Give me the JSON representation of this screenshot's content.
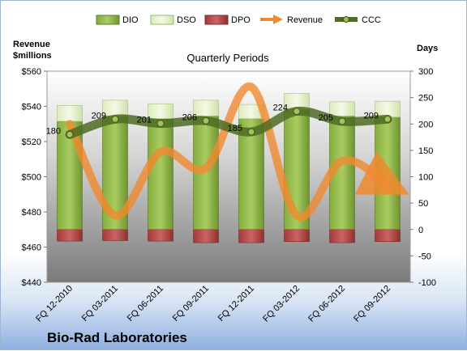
{
  "chart_data": {
    "type": "bar",
    "title": "Bio-Rad Laboratories",
    "subtitle": "Quarterly Periods",
    "left_axis_label_line1": "Revenue",
    "left_axis_label_line2": "$millions",
    "right_axis_label": "Days",
    "categories": [
      "FQ 12-2010",
      "FQ 03-2011",
      "FQ 06-2011",
      "FQ 09-2011",
      "FQ 12-2011",
      "FQ 03-2012",
      "FQ 06-2012",
      "FQ 09-2012"
    ],
    "left_ylim": [
      440,
      560
    ],
    "left_ticks": [
      "$440",
      "$460",
      "$480",
      "$500",
      "$520",
      "$540",
      "$560"
    ],
    "right_ylim": [
      -100,
      300
    ],
    "right_ticks": [
      "-100",
      "-50",
      "0",
      "50",
      "100",
      "150",
      "200",
      "250",
      "300"
    ],
    "series": [
      {
        "name": "DIO",
        "axis": "right",
        "color": "#7a9c3a",
        "values": [
          205,
          215,
          210,
          215,
          210,
          228,
          215,
          213
        ]
      },
      {
        "name": "DSO",
        "axis": "right",
        "color": "#e3f0c8",
        "values": [
          30,
          30,
          28,
          30,
          27,
          30,
          27,
          30
        ]
      },
      {
        "name": "DPO",
        "axis": "right",
        "color": "#b84a4a",
        "values": [
          -22,
          -21,
          -22,
          -25,
          -25,
          -23,
          -25,
          -23
        ]
      },
      {
        "name": "Revenue",
        "axis": "left",
        "color": "#f08a2e",
        "values": [
          530,
          478,
          514,
          505,
          551,
          478,
          509,
          496
        ]
      },
      {
        "name": "CCC",
        "axis": "right",
        "color": "#4f6b25",
        "values": [
          180,
          209,
          201,
          206,
          185,
          224,
          205,
          209
        ]
      }
    ],
    "ccc_labels": [
      "180",
      "209",
      "201",
      "206",
      "185",
      "224",
      "205",
      "209"
    ],
    "legend_placement": "top",
    "grid": false
  }
}
